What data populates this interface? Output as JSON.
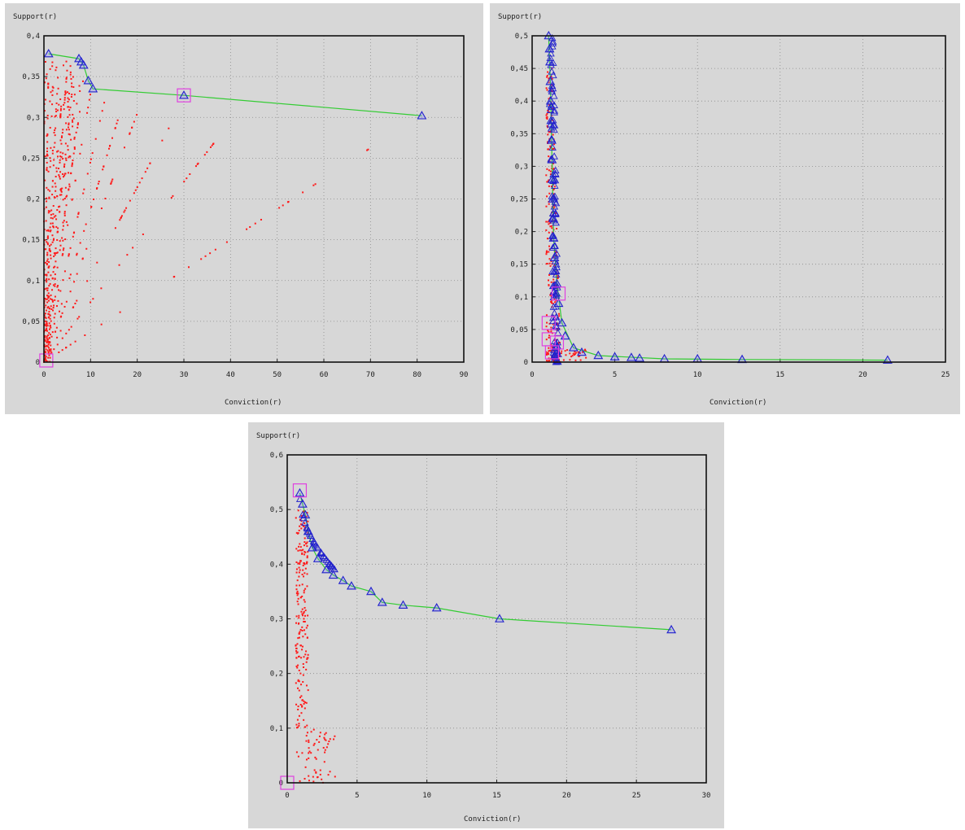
{
  "figures": [
    {
      "ylabel": "Support(r)",
      "xlabel": "Conviction(r)"
    },
    {
      "ylabel": "Support(r)",
      "xlabel": "Conviction(r)"
    },
    {
      "ylabel": "Support(r)",
      "xlabel": "Conviction(r)"
    }
  ],
  "colors": {
    "background": "#d7d7d7",
    "dominated": "#ff1a1a",
    "pareto_marker": "#2222cc",
    "pareto_line": "#33cc33",
    "highlight_box": "#e040e0"
  },
  "chart_data": [
    {
      "type": "scatter",
      "xlabel": "Conviction(r)",
      "ylabel": "Support(r)",
      "xlim": [
        0,
        90
      ],
      "ylim": [
        0,
        0.4
      ],
      "xticks": [
        0,
        10,
        20,
        30,
        40,
        50,
        60,
        70,
        80,
        90
      ],
      "yticks": [
        0,
        0.05,
        0.1,
        0.15,
        0.2,
        0.25,
        0.3,
        0.35,
        0.4
      ],
      "ytick_labels": [
        "0",
        "0,05",
        "0,1",
        "0,15",
        "0,2",
        "0,25",
        "0,3",
        "0,35",
        "0,4"
      ],
      "xtick_labels": [
        "0",
        "10",
        "20",
        "30",
        "40",
        "50",
        "60",
        "70",
        "80",
        "90"
      ],
      "grid": true,
      "series": [
        {
          "marker": "red-dots",
          "rays": [
            {
              "x_end": 1,
              "y_end": 0.37
            },
            {
              "x_end": 2,
              "y_end": 0.36
            },
            {
              "x_end": 3,
              "y_end": 0.35
            },
            {
              "x_end": 4,
              "y_end": 0.34
            },
            {
              "x_end": 5,
              "y_end": 0.36
            },
            {
              "x_end": 6,
              "y_end": 0.33
            },
            {
              "x_end": 8,
              "y_end": 0.32
            },
            {
              "x_end": 10,
              "y_end": 0.33
            },
            {
              "x_end": 13,
              "y_end": 0.32
            },
            {
              "x_end": 16,
              "y_end": 0.3
            },
            {
              "x_end": 21,
              "y_end": 0.32
            },
            {
              "x_end": 28,
              "y_end": 0.3
            },
            {
              "x_end": 38,
              "y_end": 0.28
            },
            {
              "x_end": 72,
              "y_end": 0.27
            }
          ]
        },
        {
          "marker": "blue-triangle",
          "points": [
            [
              1,
              0.378
            ],
            [
              7.5,
              0.372
            ],
            [
              8,
              0.368
            ],
            [
              8.5,
              0.364
            ],
            [
              9.5,
              0.345
            ],
            [
              10.5,
              0.335
            ],
            [
              30,
              0.327
            ],
            [
              81,
              0.302
            ]
          ]
        },
        {
          "marker": "green-line",
          "points": [
            [
              1,
              0.378
            ],
            [
              7.5,
              0.372
            ],
            [
              8,
              0.368
            ],
            [
              8.5,
              0.364
            ],
            [
              9.5,
              0.345
            ],
            [
              10.5,
              0.335
            ],
            [
              30,
              0.327
            ],
            [
              81,
              0.302
            ]
          ]
        },
        {
          "marker": "magenta-box",
          "points": [
            [
              30,
              0.327
            ],
            [
              0.5,
              0.002
            ]
          ]
        }
      ]
    },
    {
      "type": "scatter",
      "xlabel": "Conviction(r)",
      "ylabel": "Support(r)",
      "xlim": [
        0,
        25
      ],
      "ylim": [
        0,
        0.5
      ],
      "xticks": [
        0,
        5,
        10,
        15,
        20,
        25
      ],
      "yticks": [
        0,
        0.05,
        0.1,
        0.15,
        0.2,
        0.25,
        0.3,
        0.35,
        0.4,
        0.45,
        0.5
      ],
      "ytick_labels": [
        "0",
        "0,05",
        "0,1",
        "0,15",
        "0,2",
        "0,25",
        "0,3",
        "0,35",
        "0,4",
        "0,45",
        "0,5"
      ],
      "xtick_labels": [
        "0",
        "5",
        "10",
        "15",
        "20",
        "25"
      ],
      "grid": true,
      "series": [
        {
          "marker": "blue-triangle",
          "points": [
            [
              1,
              0.5
            ],
            [
              1.05,
              0.48
            ],
            [
              1.08,
              0.46
            ],
            [
              1.1,
              0.43
            ],
            [
              1.12,
              0.4
            ],
            [
              1.15,
              0.37
            ],
            [
              1.18,
              0.34
            ],
            [
              1.2,
              0.31
            ],
            [
              1.22,
              0.28
            ],
            [
              1.25,
              0.25
            ],
            [
              1.28,
              0.22
            ],
            [
              1.3,
              0.19
            ],
            [
              1.35,
              0.16
            ],
            [
              1.4,
              0.14
            ],
            [
              1.5,
              0.12
            ],
            [
              1.6,
              0.09
            ],
            [
              1.8,
              0.06
            ],
            [
              2,
              0.04
            ],
            [
              2.5,
              0.022
            ],
            [
              3,
              0.015
            ],
            [
              4,
              0.01
            ],
            [
              5,
              0.008
            ],
            [
              6,
              0.007
            ],
            [
              6.5,
              0.006
            ],
            [
              8,
              0.005
            ],
            [
              10,
              0.005
            ],
            [
              12.7,
              0.004
            ],
            [
              21.5,
              0.003
            ]
          ]
        },
        {
          "marker": "green-line",
          "points": [
            [
              1,
              0.5
            ],
            [
              1.1,
              0.43
            ],
            [
              1.2,
              0.31
            ],
            [
              1.3,
              0.19
            ],
            [
              1.5,
              0.12
            ],
            [
              1.8,
              0.06
            ],
            [
              2.5,
              0.022
            ],
            [
              4,
              0.01
            ],
            [
              8,
              0.005
            ],
            [
              12.7,
              0.004
            ],
            [
              21.5,
              0.003
            ]
          ]
        },
        {
          "marker": "magenta-box",
          "points": [
            [
              1.6,
              0.105
            ],
            [
              1,
              0.06
            ],
            [
              1,
              0.035
            ],
            [
              1.5,
              0.03
            ],
            [
              1.2,
              0.015
            ]
          ]
        }
      ]
    },
    {
      "type": "scatter",
      "xlabel": "Conviction(r)",
      "ylabel": "Support(r)",
      "xlim": [
        0,
        30
      ],
      "ylim": [
        0,
        0.6
      ],
      "xticks": [
        0,
        5,
        10,
        15,
        20,
        25,
        30
      ],
      "yticks": [
        0,
        0.1,
        0.2,
        0.3,
        0.4,
        0.5,
        0.6
      ],
      "ytick_labels": [
        "0",
        "0,1",
        "0,2",
        "0,3",
        "0,4",
        "0,5",
        "0,6"
      ],
      "xtick_labels": [
        "0",
        "5",
        "10",
        "15",
        "20",
        "25",
        "30"
      ],
      "grid": true,
      "series": [
        {
          "marker": "blue-triangle",
          "points": [
            [
              0.9,
              0.53
            ],
            [
              1.1,
              0.51
            ],
            [
              1.3,
              0.49
            ],
            [
              1.5,
              0.46
            ],
            [
              1.8,
              0.43
            ],
            [
              2.2,
              0.41
            ],
            [
              2.8,
              0.39
            ],
            [
              3.3,
              0.38
            ],
            [
              4,
              0.37
            ],
            [
              4.6,
              0.36
            ],
            [
              6,
              0.35
            ],
            [
              6.8,
              0.33
            ],
            [
              8.3,
              0.325
            ],
            [
              10.7,
              0.32
            ],
            [
              15.2,
              0.3
            ],
            [
              27.5,
              0.28
            ]
          ]
        },
        {
          "marker": "green-line",
          "points": [
            [
              0.9,
              0.53
            ],
            [
              1.1,
              0.51
            ],
            [
              1.3,
              0.49
            ],
            [
              1.5,
              0.46
            ],
            [
              1.8,
              0.43
            ],
            [
              2.2,
              0.41
            ],
            [
              2.8,
              0.39
            ],
            [
              3.3,
              0.38
            ],
            [
              4,
              0.37
            ],
            [
              4.6,
              0.36
            ],
            [
              6,
              0.35
            ],
            [
              6.8,
              0.33
            ],
            [
              8.3,
              0.325
            ],
            [
              10.7,
              0.32
            ],
            [
              15.2,
              0.3
            ],
            [
              27.5,
              0.28
            ]
          ]
        },
        {
          "marker": "magenta-box",
          "points": [
            [
              0.9,
              0.535
            ],
            [
              0,
              0
            ]
          ]
        }
      ]
    }
  ]
}
